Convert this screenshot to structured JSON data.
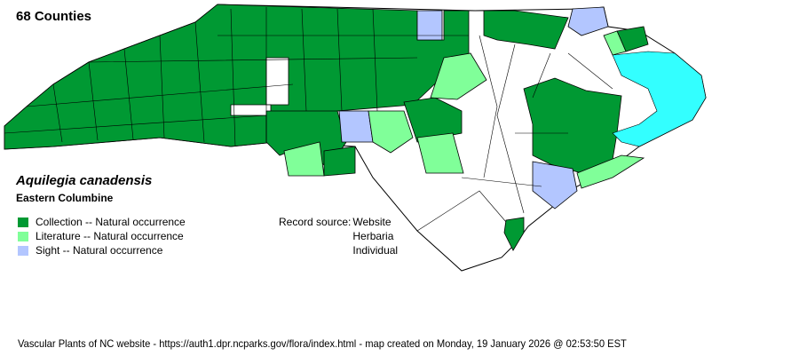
{
  "county_count": "68 Counties",
  "species": {
    "scientific_name": "Aquilegia canadensis",
    "common_name": "Eastern Columbine"
  },
  "legend": [
    {
      "label": "Collection -- Natural occurrence",
      "color": "#009933"
    },
    {
      "label": "Literature -- Natural occurrence",
      "color": "#80ff99"
    },
    {
      "label": "Sight -- Natural occurrence",
      "color": "#b3c6ff"
    }
  ],
  "record_source": {
    "label": "Record source:",
    "values": [
      "Website",
      "Herbaria",
      "Individual"
    ]
  },
  "water_color": "#33ffff",
  "footer": "Vascular Plants of NC website - https://auth1.dpr.ncparks.gov/flora/index.html - map created on Monday, 19 January 2026 @ 02:53:50 EST"
}
